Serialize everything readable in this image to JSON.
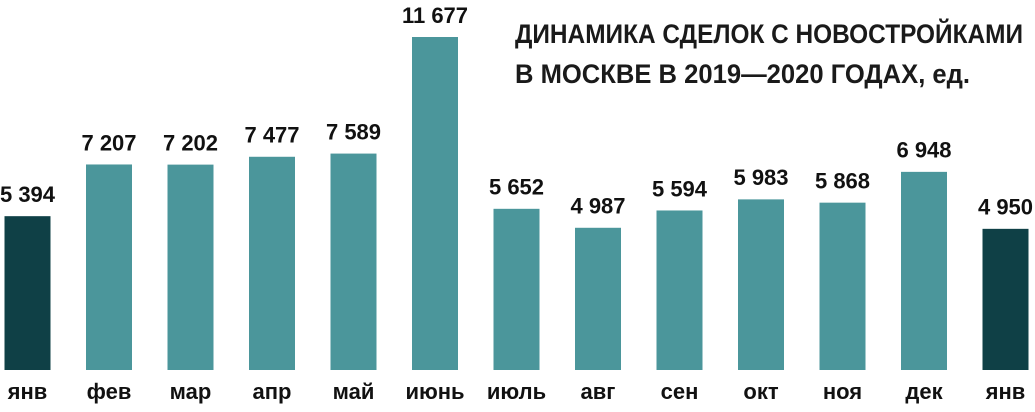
{
  "chart_data": {
    "type": "bar",
    "title_lines": [
      "ДИНАМИКА СДЕЛОК С НОВОСТРОЙКАМИ",
      "В МОСКВЕ В 2019—2020 ГОДАХ, ед."
    ],
    "categories": [
      "янв",
      "фев",
      "мар",
      "апр",
      "май",
      "июнь",
      "июль",
      "авг",
      "сен",
      "окт",
      "ноя",
      "дек",
      "янв"
    ],
    "values": [
      5394,
      7207,
      7202,
      7477,
      7589,
      11677,
      5652,
      4987,
      5594,
      5983,
      5868,
      6948,
      4950
    ],
    "value_labels": [
      "5 394",
      "7 207",
      "7 202",
      "7 477",
      "7 589",
      "11 677",
      "5 652",
      "4 987",
      "5 594",
      "5 983",
      "5 868",
      "6 948",
      "4 950"
    ],
    "colors": [
      "#0f4046",
      "#4b969b",
      "#4b969b",
      "#4b969b",
      "#4b969b",
      "#4b969b",
      "#4b969b",
      "#4b969b",
      "#4b969b",
      "#4b969b",
      "#4b969b",
      "#4b969b",
      "#0f4046"
    ]
  }
}
